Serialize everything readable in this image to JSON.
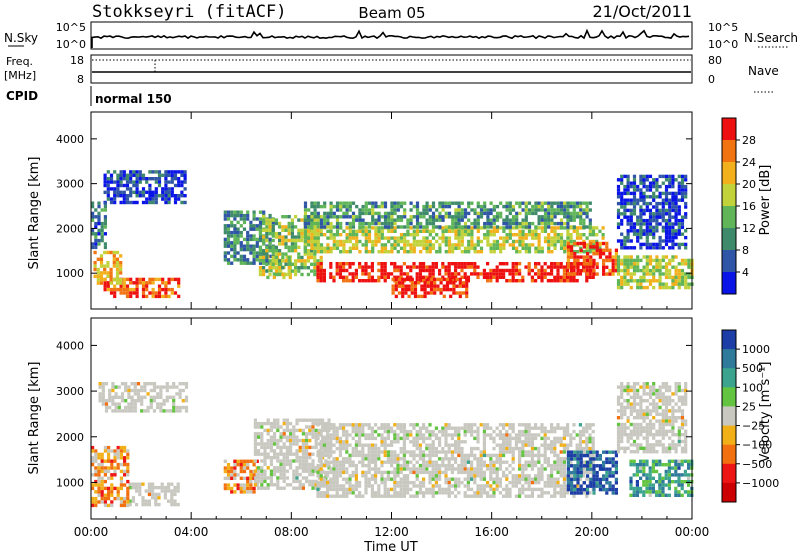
{
  "header": {
    "station": "Stokkseyri (fitACF)",
    "beam": "Beam 05",
    "date": "21/Oct/2011"
  },
  "panels": {
    "nsky_label": "N.Sky",
    "nsky_ticks": [
      "10^5",
      "10^0"
    ],
    "nsearch_label": "N.Search",
    "nsearch_ticks": [
      "10^5",
      "10^0"
    ],
    "freq_label": "Freq.",
    "freq_unit": "[MHz]",
    "freq_ticks": [
      "18",
      "8"
    ],
    "nave_label": "Nave",
    "nave_ticks": [
      "80",
      "0"
    ],
    "cpid_label": "CPID",
    "cpid_value": "normal 150"
  },
  "chart_data": [
    {
      "type": "heatmap",
      "quantity": "power",
      "ylabel": "Slant Range [km]",
      "y_ticks": [
        "1000",
        "2000",
        "3000",
        "4000"
      ],
      "ylim": [
        200,
        4600
      ],
      "colorbar_label": "Power [dB]",
      "colorbar_ticks": [
        "4",
        "8",
        "12",
        "16",
        "20",
        "24",
        "28"
      ],
      "colorbar_colors": [
        "#0a14e6",
        "#2f55a6",
        "#3e8a6a",
        "#5fb558",
        "#c2d23a",
        "#f2b11c",
        "#f27312",
        "#ee1010"
      ],
      "regions": [
        {
          "t0": 0.5,
          "t1": 3.5,
          "r0": 450,
          "r1": 900,
          "level": 0.85
        },
        {
          "t0": 0.1,
          "t1": 1.2,
          "r0": 800,
          "r1": 1500,
          "level": 0.7
        },
        {
          "t0": 0.5,
          "t1": 3.8,
          "r0": 2600,
          "r1": 3300,
          "level": 0.12
        },
        {
          "t0": 0.0,
          "t1": 0.6,
          "r0": 1600,
          "r1": 2600,
          "level": 0.25
        },
        {
          "t0": 5.3,
          "t1": 7.3,
          "r0": 1200,
          "r1": 2400,
          "level": 0.3
        },
        {
          "t0": 7.0,
          "t1": 8.0,
          "r0": 900,
          "r1": 1400,
          "level": 0.55
        },
        {
          "t0": 6.7,
          "t1": 9.2,
          "r0": 1000,
          "r1": 2300,
          "level": 0.5
        },
        {
          "t0": 9.0,
          "t1": 20.0,
          "r0": 850,
          "r1": 1250,
          "level": 0.95
        },
        {
          "t0": 12.0,
          "t1": 15.0,
          "r0": 450,
          "r1": 900,
          "level": 0.95
        },
        {
          "t0": 8.5,
          "t1": 20.5,
          "r0": 1500,
          "r1": 2050,
          "level": 0.55
        },
        {
          "t0": 8.5,
          "t1": 20.0,
          "r0": 2050,
          "r1": 2600,
          "level": 0.35
        },
        {
          "t0": 19.0,
          "t1": 21.0,
          "r0": 1000,
          "r1": 1700,
          "level": 0.9
        },
        {
          "t0": 21.0,
          "t1": 23.8,
          "r0": 1600,
          "r1": 3200,
          "level": 0.15
        },
        {
          "t0": 21.0,
          "t1": 24.0,
          "r0": 700,
          "r1": 1400,
          "level": 0.55
        }
      ]
    },
    {
      "type": "heatmap",
      "quantity": "velocity",
      "xlabel": "Time UT",
      "ylabel": "Slant Range [km]",
      "x_ticks": [
        "00:00",
        "04:00",
        "08:00",
        "12:00",
        "16:00",
        "20:00",
        "00:00"
      ],
      "xlim": [
        0,
        24
      ],
      "y_ticks": [
        "1000",
        "2000",
        "3000",
        "4000"
      ],
      "ylim": [
        200,
        4600
      ],
      "colorbar_label": "Velocity [m s⁻¹]",
      "colorbar_ticks": [
        "1000",
        "500",
        "100",
        "25",
        "−25",
        "−100",
        "−500",
        "−1000"
      ],
      "colorbar_colors": [
        "#1c3ea6",
        "#2f7a9a",
        "#3ba38e",
        "#63c441",
        "#c8c8c0",
        "#f2b018",
        "#f27010",
        "#ee1515",
        "#cc0000"
      ],
      "regions": [
        {
          "t0": 0.3,
          "t1": 3.8,
          "r0": 2600,
          "r1": 3200,
          "level": 0.5
        },
        {
          "t0": 1.5,
          "t1": 3.5,
          "r0": 500,
          "r1": 1000,
          "level": 0.5
        },
        {
          "t0": 0.0,
          "t1": 1.5,
          "r0": 500,
          "r1": 1800,
          "level": 0.35
        },
        {
          "t0": 5.3,
          "t1": 6.7,
          "r0": 800,
          "r1": 1500,
          "level": 0.35
        },
        {
          "t0": 6.5,
          "t1": 9.5,
          "r0": 900,
          "r1": 2400,
          "level": 0.5
        },
        {
          "t0": 9.0,
          "t1": 20.0,
          "r0": 700,
          "r1": 2300,
          "level": 0.5
        },
        {
          "t0": 19.0,
          "t1": 21.0,
          "r0": 800,
          "r1": 1700,
          "level": 0.92
        },
        {
          "t0": 21.0,
          "t1": 23.8,
          "r0": 1700,
          "r1": 3200,
          "level": 0.5
        },
        {
          "t0": 21.5,
          "t1": 24.0,
          "r0": 700,
          "r1": 1500,
          "level": 0.72
        }
      ]
    }
  ]
}
